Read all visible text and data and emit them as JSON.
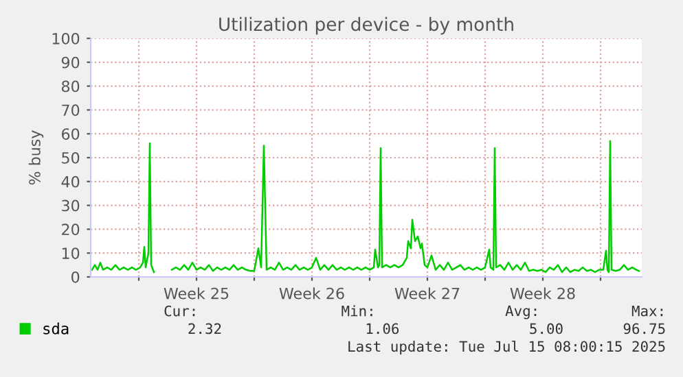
{
  "chart_data": {
    "type": "line",
    "title": "Utilization per device - by month",
    "ylabel": "% busy",
    "x": [
      "2025-06-13T04:00",
      "2025-06-13T08:00",
      "2025-06-13T12:00",
      "2025-06-13T16:00",
      "2025-06-13T20:00",
      "2025-06-14T02:00",
      "2025-06-14T08:00",
      "2025-06-14T14:00",
      "2025-06-14T20:00",
      "2025-06-15T02:00",
      "2025-06-15T08:00",
      "2025-06-15T14:00",
      "2025-06-15T20:00",
      "2025-06-16T02:00",
      "2025-06-16T06:00",
      "2025-06-16T08:00",
      "2025-06-16T10:00",
      "2025-06-16T14:00",
      "2025-06-16T16:00",
      "2025-06-16T18:00",
      "2025-06-16T22:00",
      "2025-06-17T00:00",
      "2025-06-18T00:00",
      "2025-06-18T06:00",
      "2025-06-18T12:00",
      "2025-06-18T18:00",
      "2025-06-19T00:00",
      "2025-06-19T06:00",
      "2025-06-19T12:00",
      "2025-06-19T18:00",
      "2025-06-20T00:00",
      "2025-06-20T06:00",
      "2025-06-20T12:00",
      "2025-06-20T18:00",
      "2025-06-21T00:00",
      "2025-06-21T06:00",
      "2025-06-21T12:00",
      "2025-06-21T18:00",
      "2025-06-22T00:00",
      "2025-06-22T06:00",
      "2025-06-22T12:00",
      "2025-06-22T18:00",
      "2025-06-23T00:00",
      "2025-06-23T06:00",
      "2025-06-23T10:00",
      "2025-06-23T14:00",
      "2025-06-23T18:00",
      "2025-06-24T00:00",
      "2025-06-24T06:00",
      "2025-06-24T12:00",
      "2025-06-24T18:00",
      "2025-06-25T00:00",
      "2025-06-25T06:00",
      "2025-06-25T12:00",
      "2025-06-25T18:00",
      "2025-06-26T00:00",
      "2025-06-26T06:00",
      "2025-06-26T12:00",
      "2025-06-26T18:00",
      "2025-06-27T00:00",
      "2025-06-27T06:00",
      "2025-06-27T12:00",
      "2025-06-27T18:00",
      "2025-06-28T00:00",
      "2025-06-28T06:00",
      "2025-06-28T12:00",
      "2025-06-28T18:00",
      "2025-06-29T00:00",
      "2025-06-29T06:00",
      "2025-06-29T12:00",
      "2025-06-29T18:00",
      "2025-06-30T00:00",
      "2025-06-30T06:00",
      "2025-06-30T08:00",
      "2025-06-30T12:00",
      "2025-06-30T14:00",
      "2025-06-30T16:00",
      "2025-06-30T18:00",
      "2025-07-01T00:00",
      "2025-07-01T06:00",
      "2025-07-01T12:00",
      "2025-07-01T18:00",
      "2025-07-02T00:00",
      "2025-07-02T06:00",
      "2025-07-02T08:00",
      "2025-07-02T12:00",
      "2025-07-02T14:00",
      "2025-07-02T18:00",
      "2025-07-02T22:00",
      "2025-07-03T02:00",
      "2025-07-03T04:00",
      "2025-07-03T08:00",
      "2025-07-03T12:00",
      "2025-07-03T18:00",
      "2025-07-04T00:00",
      "2025-07-04T06:00",
      "2025-07-04T12:00",
      "2025-07-04T18:00",
      "2025-07-05T00:00",
      "2025-07-05T06:00",
      "2025-07-05T12:00",
      "2025-07-05T18:00",
      "2025-07-06T00:00",
      "2025-07-06T06:00",
      "2025-07-06T12:00",
      "2025-07-06T18:00",
      "2025-07-07T00:00",
      "2025-07-07T06:00",
      "2025-07-07T08:00",
      "2025-07-07T12:00",
      "2025-07-07T14:00",
      "2025-07-07T16:00",
      "2025-07-07T22:00",
      "2025-07-08T04:00",
      "2025-07-08T10:00",
      "2025-07-08T16:00",
      "2025-07-08T22:00",
      "2025-07-09T04:00",
      "2025-07-09T10:00",
      "2025-07-09T16:00",
      "2025-07-09T22:00",
      "2025-07-10T04:00",
      "2025-07-10T10:00",
      "2025-07-10T16:00",
      "2025-07-10T22:00",
      "2025-07-11T04:00",
      "2025-07-11T10:00",
      "2025-07-11T16:00",
      "2025-07-11T22:00",
      "2025-07-12T04:00",
      "2025-07-12T10:00",
      "2025-07-12T16:00",
      "2025-07-12T22:00",
      "2025-07-13T04:00",
      "2025-07-13T10:00",
      "2025-07-13T16:00",
      "2025-07-13T22:00",
      "2025-07-14T04:00",
      "2025-07-14T08:00",
      "2025-07-14T10:00",
      "2025-07-14T12:00",
      "2025-07-14T14:00",
      "2025-07-14T16:00",
      "2025-07-14T22:00",
      "2025-07-15T04:00",
      "2025-07-15T10:00",
      "2025-07-15T16:00",
      "2025-07-15T22:00",
      "2025-07-16T04:00",
      "2025-07-16T08:00"
    ],
    "series": [
      {
        "name": "sda",
        "color": "#00cc00",
        "values": [
          3,
          5,
          3,
          6,
          3,
          4,
          3,
          5,
          3,
          4,
          3,
          4,
          3,
          4,
          6,
          12.6,
          4,
          10,
          56,
          5,
          2,
          null,
          3,
          4,
          3,
          5,
          3,
          6,
          3,
          4,
          3,
          5,
          2.5,
          4,
          3,
          4,
          3,
          5,
          3,
          4,
          3,
          2.5,
          2.5,
          12,
          4,
          55,
          3,
          4,
          3,
          6,
          3,
          4,
          3,
          5,
          3,
          4,
          3,
          4,
          8,
          3,
          5,
          3,
          5,
          3,
          4,
          3,
          4,
          3,
          4,
          3,
          4,
          3,
          4,
          11.5,
          4,
          5,
          54,
          4,
          5,
          4,
          5,
          4,
          5,
          8,
          15,
          12,
          24,
          15,
          17,
          12,
          14,
          5,
          4,
          9,
          3,
          5,
          3,
          6,
          3,
          4,
          5,
          3,
          4,
          3,
          4,
          3,
          4,
          11.5,
          4,
          3,
          54,
          4,
          5,
          3,
          6,
          3,
          5,
          3,
          6,
          2.5,
          3,
          2.5,
          3,
          2,
          4,
          3,
          5,
          2,
          4,
          2,
          3,
          2.5,
          4,
          2.5,
          3,
          2,
          3,
          3,
          11,
          3,
          2,
          57,
          3,
          2.5,
          3,
          5,
          3,
          4,
          3,
          2.5
        ]
      }
    ],
    "xlim": [
      "2025-06-13T02:00",
      "2025-07-16T12:00"
    ],
    "xticks": [
      {
        "value": "2025-06-16T00:00",
        "label": null
      },
      {
        "value": "2025-06-19T12:00",
        "label": "Week 25"
      },
      {
        "value": "2025-06-23T00:00",
        "label": null
      },
      {
        "value": "2025-06-26T12:00",
        "label": "Week 26"
      },
      {
        "value": "2025-06-30T00:00",
        "label": null
      },
      {
        "value": "2025-07-03T12:00",
        "label": "Week 27"
      },
      {
        "value": "2025-07-07T00:00",
        "label": null
      },
      {
        "value": "2025-07-10T12:00",
        "label": "Week 28"
      },
      {
        "value": "2025-07-14T00:00",
        "label": null
      }
    ],
    "ylim": [
      0,
      100
    ],
    "yticks": [
      0,
      10,
      20,
      30,
      40,
      50,
      60,
      70,
      80,
      90,
      100
    ],
    "grid": true,
    "legend": "bottom",
    "line_style": "solid",
    "marker": "none",
    "annotations": [
      "Cur:",
      "Min:",
      "Avg:",
      "Max:",
      "2.32",
      "1.06",
      "5.00",
      "96.75",
      "Last update: Tue Jul 15 08:00:15 2025"
    ]
  }
}
